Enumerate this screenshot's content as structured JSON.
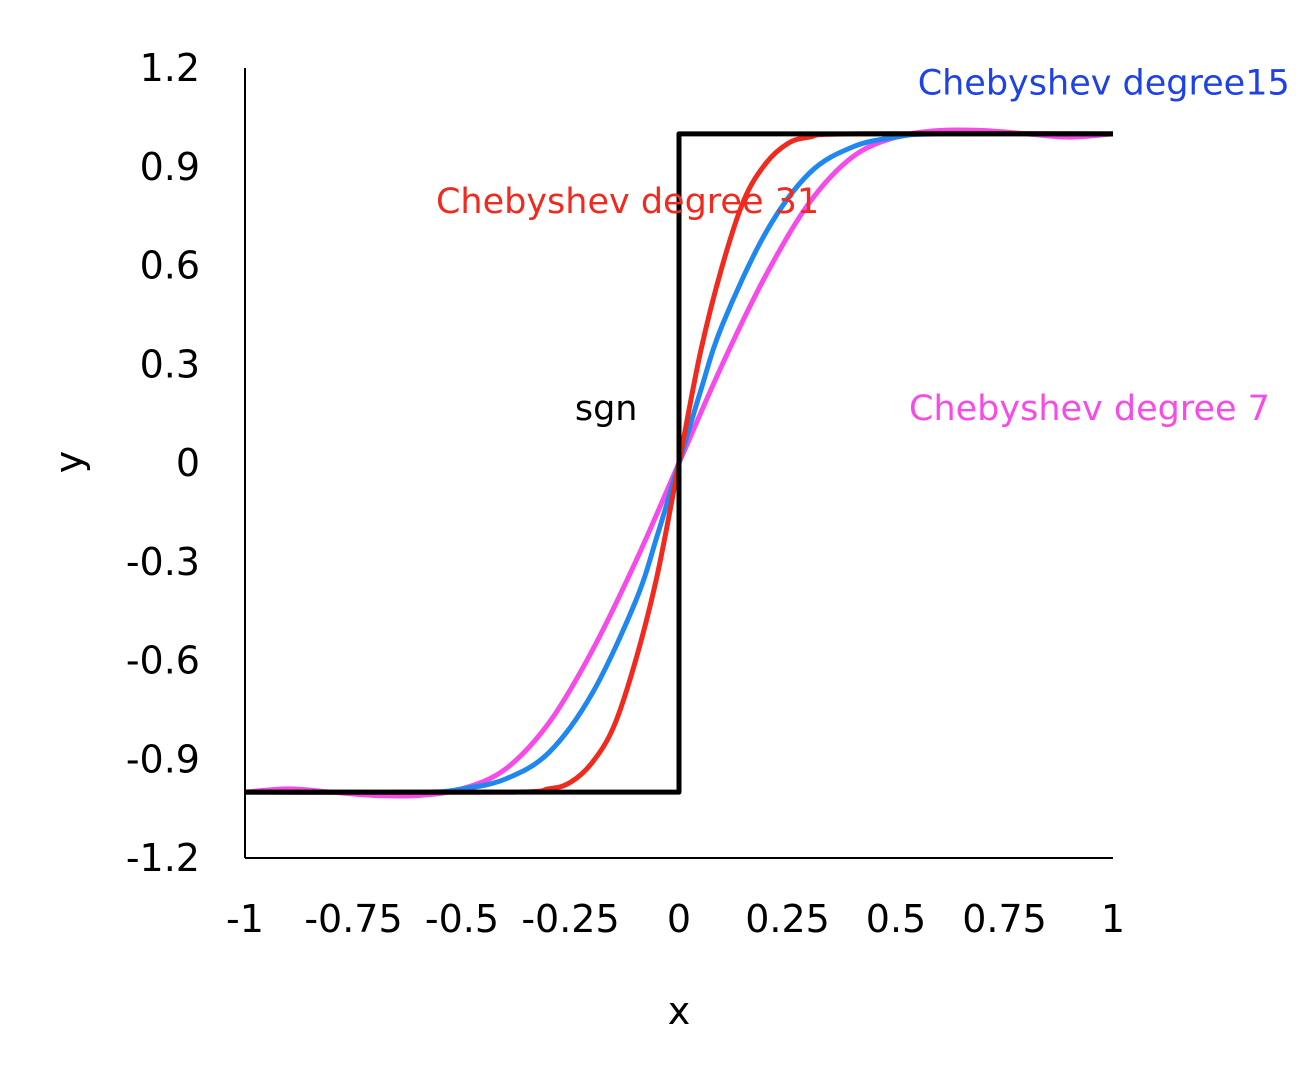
{
  "chart_data": {
    "type": "line",
    "title": "",
    "xlabel": "x",
    "ylabel": "y",
    "xlim": [
      -1,
      1
    ],
    "ylim": [
      -1.2,
      1.2
    ],
    "x_ticks": [
      -1,
      -0.75,
      -0.5,
      -0.25,
      0,
      0.25,
      0.5,
      0.75,
      1
    ],
    "x_tick_labels": [
      "-1",
      "-0.75",
      "-0.5",
      "-0.25",
      "0",
      "0.25",
      "0.5",
      "0.75",
      "1"
    ],
    "y_ticks": [
      1.2,
      0.9,
      0.6,
      0.3,
      0,
      -0.3,
      -0.6,
      -0.9,
      -1.2
    ],
    "y_tick_labels": [
      "1.2",
      "0.9",
      "0.6",
      "0.3",
      "0",
      "-0.3",
      "-0.6",
      "-0.9",
      "-1.2"
    ],
    "grid": false,
    "legend": "none",
    "series": [
      {
        "name": "Chebyshev degree 7",
        "color": "#F64BE8",
        "x": [
          -1,
          -0.9,
          -0.8,
          -0.7,
          -0.6,
          -0.5,
          -0.4,
          -0.3,
          -0.2,
          -0.1,
          0,
          0.1,
          0.2,
          0.3,
          0.4,
          0.5,
          0.6,
          0.7,
          0.8,
          0.9,
          1
        ],
        "y": [
          -1.0,
          -0.99,
          -1.0,
          -1.01,
          -1.01,
          -0.99,
          -0.93,
          -0.79,
          -0.57,
          -0.3,
          0,
          0.3,
          0.57,
          0.79,
          0.93,
          0.99,
          1.01,
          1.01,
          1.0,
          0.99,
          1.0
        ]
      },
      {
        "name": "Chebyshev degree15",
        "color": "#1E88F0",
        "x": [
          -1,
          -0.6,
          -0.5,
          -0.4,
          -0.3,
          -0.2,
          -0.1,
          -0.05,
          0,
          0.05,
          0.1,
          0.2,
          0.3,
          0.4,
          0.5,
          0.6,
          1
        ],
        "y": [
          -1.0,
          -1.0,
          -0.99,
          -0.96,
          -0.88,
          -0.7,
          -0.42,
          -0.22,
          0,
          0.22,
          0.42,
          0.7,
          0.88,
          0.96,
          0.99,
          1.0,
          1.0
        ]
      },
      {
        "name": "Chebyshev degree 31",
        "color": "#F02A1E",
        "x": [
          -1,
          -0.4,
          -0.3,
          -0.25,
          -0.2,
          -0.15,
          -0.1,
          -0.05,
          0,
          0.05,
          0.1,
          0.15,
          0.2,
          0.25,
          0.3,
          0.4,
          1
        ],
        "y": [
          -1.0,
          -1.0,
          -0.99,
          -0.97,
          -0.91,
          -0.8,
          -0.6,
          -0.34,
          0,
          0.34,
          0.6,
          0.8,
          0.91,
          0.97,
          0.99,
          1.0,
          1.0
        ]
      },
      {
        "name": "sgn",
        "color": "#000000",
        "x": [
          -1,
          0,
          0,
          1
        ],
        "y": [
          -1,
          -1,
          1,
          1
        ]
      }
    ],
    "annotations": [
      {
        "text": "Chebyshev degree15",
        "color": "#1D42E8",
        "x": 0.55,
        "y": 1.12
      },
      {
        "text": "Chebyshev degree 31",
        "color": "#F02A1E",
        "x": -0.56,
        "y": 0.76
      },
      {
        "text": "sgn",
        "color": "#000000",
        "x": -0.24,
        "y": 0.13
      },
      {
        "text": "Chebyshev degree 7",
        "color": "#F64BE8",
        "x": 0.53,
        "y": 0.13
      }
    ]
  }
}
